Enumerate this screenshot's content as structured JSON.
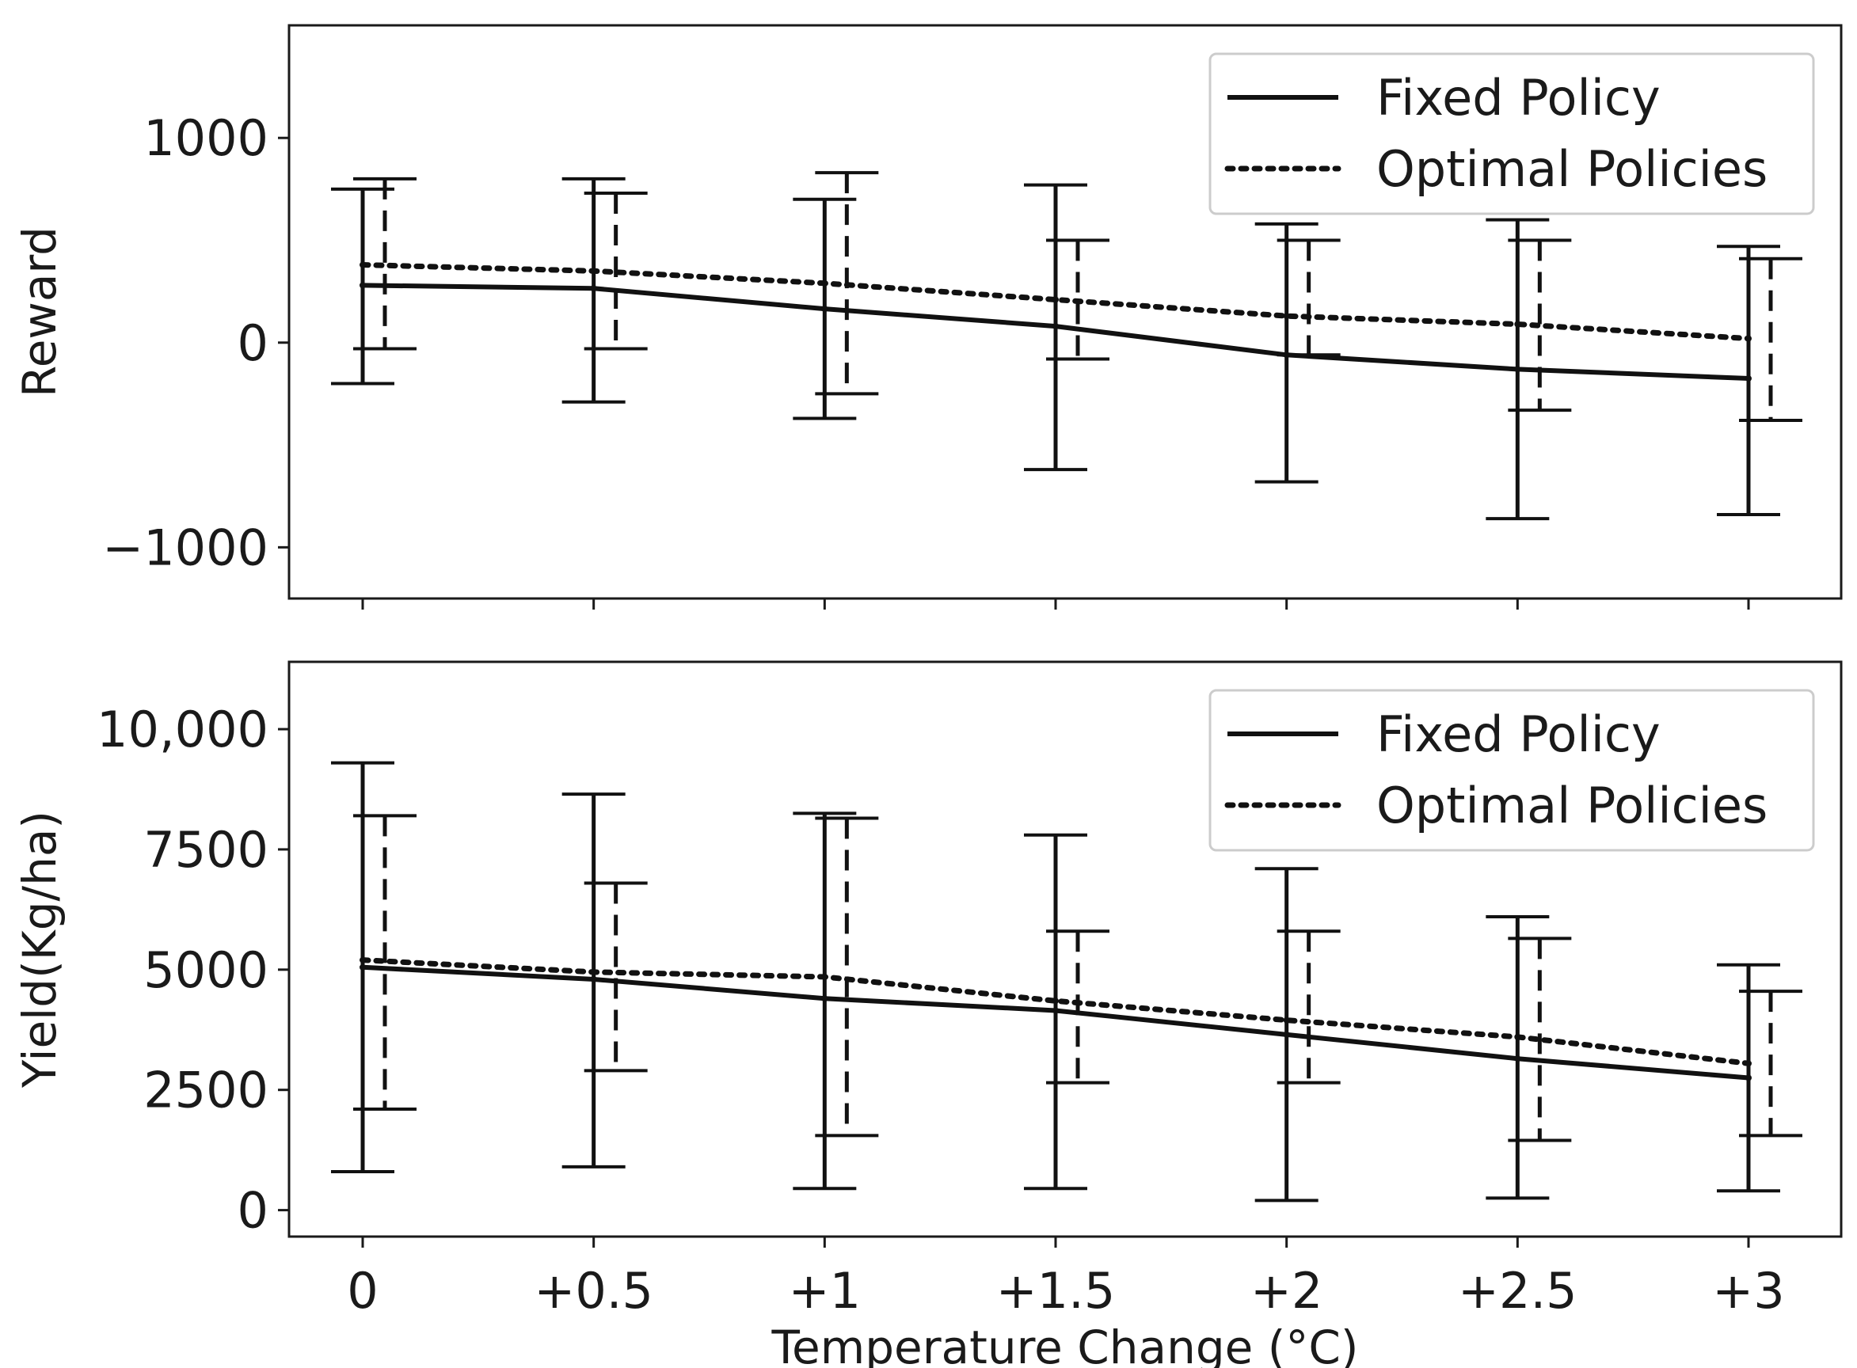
{
  "chart_data": [
    {
      "type": "line",
      "title": "",
      "xlabel": "",
      "ylabel": "Reward",
      "categories": [
        "0",
        "+0.5",
        "+1",
        "+1.5",
        "+2",
        "+2.5",
        "+3"
      ],
      "x": [
        0,
        0.5,
        1,
        1.5,
        2,
        2.5,
        3
      ],
      "ylim": [
        -1000,
        1000
      ],
      "yticks": [
        -1000,
        0,
        1000
      ],
      "ytick_labels": [
        "−1000",
        "0",
        "1000"
      ],
      "grid": false,
      "legend": "top-right",
      "series": [
        {
          "name": "Fixed Policy",
          "style": "solid",
          "values": [
            280,
            265,
            165,
            80,
            -60,
            -130,
            -175
          ],
          "err_low": [
            -200,
            -290,
            -370,
            -620,
            -680,
            -860,
            -840
          ],
          "err_high": [
            750,
            800,
            700,
            770,
            580,
            600,
            470
          ]
        },
        {
          "name": "Optimal Policies",
          "style": "dotted",
          "errbar_style": "dashed",
          "values": [
            380,
            350,
            290,
            210,
            130,
            90,
            20
          ],
          "err_low": [
            -30,
            -30,
            -250,
            -80,
            -60,
            -330,
            -380
          ],
          "err_high": [
            800,
            730,
            830,
            500,
            500,
            500,
            410
          ]
        }
      ]
    },
    {
      "type": "line",
      "title": "",
      "xlabel": "Temperature Change (°C)",
      "ylabel": "Yield(Kg/ha)",
      "categories": [
        "0",
        "+0.5",
        "+1",
        "+1.5",
        "+2",
        "+2.5",
        "+3"
      ],
      "x": [
        0,
        0.5,
        1,
        1.5,
        2,
        2.5,
        3
      ],
      "ylim": [
        0,
        10000
      ],
      "yticks": [
        0,
        2500,
        5000,
        7500,
        10000
      ],
      "ytick_labels": [
        "0",
        "2500",
        "5000",
        "7500",
        "10,000"
      ],
      "grid": false,
      "legend": "top-right",
      "series": [
        {
          "name": "Fixed Policy",
          "style": "solid",
          "values": [
            5050,
            4800,
            4400,
            4150,
            3650,
            3150,
            2750
          ],
          "err_low": [
            800,
            900,
            450,
            450,
            200,
            250,
            400
          ],
          "err_high": [
            9300,
            8650,
            8250,
            7800,
            7100,
            6100,
            5100
          ]
        },
        {
          "name": "Optimal Policies",
          "style": "dotted",
          "errbar_style": "dashed",
          "values": [
            5200,
            4950,
            4850,
            4350,
            3950,
            3600,
            3050
          ],
          "err_low": [
            2100,
            2900,
            1550,
            2650,
            2650,
            1450,
            1550
          ],
          "err_high": [
            8200,
            6800,
            8150,
            5800,
            5800,
            5650,
            4550
          ]
        }
      ]
    }
  ]
}
